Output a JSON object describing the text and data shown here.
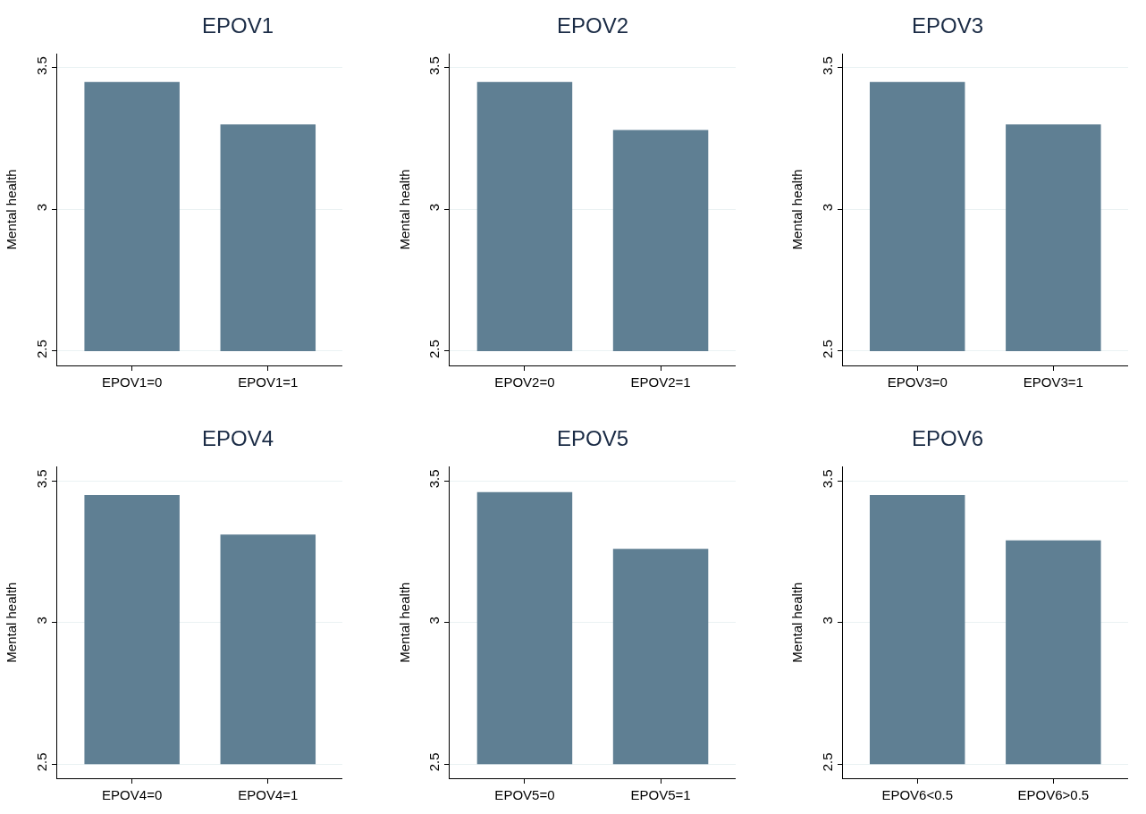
{
  "chart_data": [
    {
      "type": "bar",
      "title": "EPOV1",
      "ylabel": "Mental health",
      "categories": [
        "EPOV1=0",
        "EPOV1=1"
      ],
      "base": [
        2.5,
        2.5
      ],
      "values": [
        0.95,
        0.8
      ],
      "color": "#5f7f93",
      "ylim": [
        2.45,
        3.55
      ],
      "yticks": [
        2.5,
        3,
        3.5
      ],
      "grid": "y"
    },
    {
      "type": "bar",
      "title": "EPOV2",
      "ylabel": "Mental health",
      "categories": [
        "EPOV2=0",
        "EPOV2=1"
      ],
      "base": [
        2.5,
        2.5
      ],
      "values": [
        0.95,
        0.78
      ],
      "color": "#5f7f93",
      "ylim": [
        2.45,
        3.55
      ],
      "yticks": [
        2.5,
        3,
        3.5
      ],
      "grid": "y"
    },
    {
      "type": "bar",
      "title": "EPOV3",
      "ylabel": "Mental health",
      "categories": [
        "EPOV3=0",
        "EPOV3=1"
      ],
      "base": [
        2.5,
        2.5
      ],
      "values": [
        0.95,
        0.8
      ],
      "color": "#5f7f93",
      "ylim": [
        2.45,
        3.55
      ],
      "yticks": [
        2.5,
        3,
        3.5
      ],
      "grid": "y"
    },
    {
      "type": "bar",
      "title": "EPOV4",
      "ylabel": "Mental health",
      "categories": [
        "EPOV4=0",
        "EPOV4=1"
      ],
      "base": [
        2.5,
        2.5
      ],
      "values": [
        0.95,
        0.81
      ],
      "color": "#5f7f93",
      "ylim": [
        2.45,
        3.55
      ],
      "yticks": [
        2.5,
        3,
        3.5
      ],
      "grid": "y"
    },
    {
      "type": "bar",
      "title": "EPOV5",
      "ylabel": "Mental health",
      "categories": [
        "EPOV5=0",
        "EPOV5=1"
      ],
      "base": [
        2.5,
        2.5
      ],
      "values": [
        0.96,
        0.76
      ],
      "color": "#5f7f93",
      "ylim": [
        2.45,
        3.55
      ],
      "yticks": [
        2.5,
        3,
        3.5
      ],
      "grid": "y"
    },
    {
      "type": "bar",
      "title": "EPOV6",
      "ylabel": "Mental health",
      "categories": [
        "EPOV6<0.5",
        "EPOV6>0.5"
      ],
      "base": [
        2.5,
        2.5
      ],
      "values": [
        0.95,
        0.79
      ],
      "color": "#5f7f93",
      "ylim": [
        2.45,
        3.55
      ],
      "yticks": [
        2.5,
        3,
        3.5
      ],
      "grid": "y"
    }
  ]
}
